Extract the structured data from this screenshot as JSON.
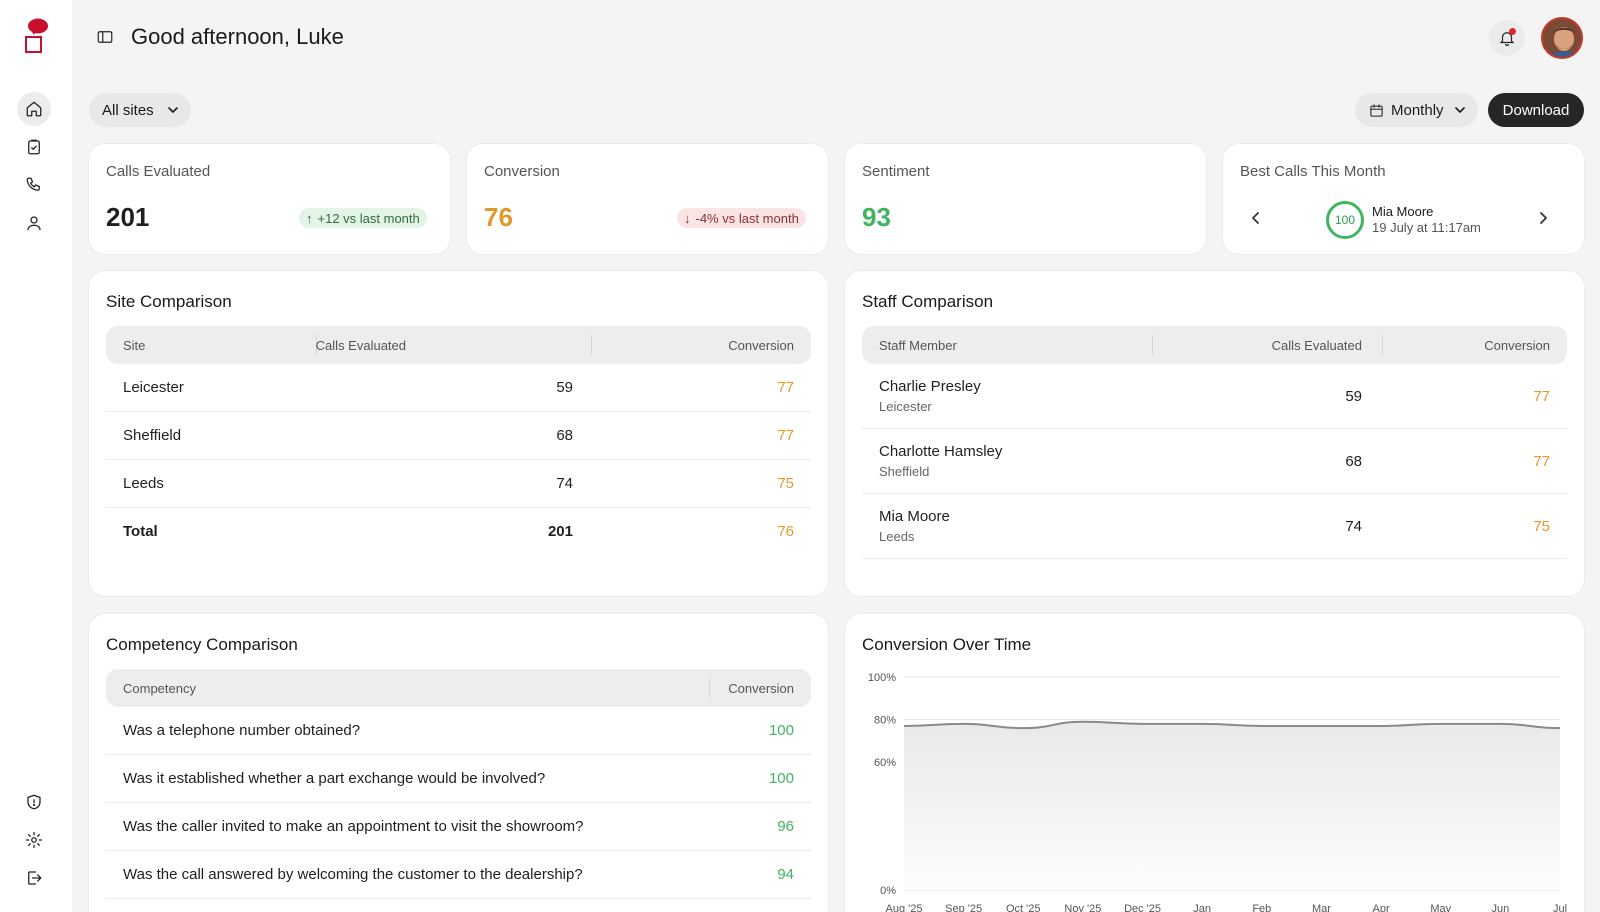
{
  "header": {
    "greeting": "Good afternoon, Luke"
  },
  "sidebar": {
    "nav": [
      {
        "name": "home-icon",
        "active": true
      },
      {
        "name": "clipboard-check-icon",
        "active": false
      },
      {
        "name": "phone-icon",
        "active": false
      },
      {
        "name": "user-icon",
        "active": false
      }
    ],
    "bottom": [
      "shield-icon",
      "gear-icon",
      "logout-icon"
    ]
  },
  "filters": {
    "site": "All sites",
    "period": "Monthly",
    "download_label": "Download"
  },
  "stats": {
    "calls": {
      "label": "Calls Evaluated",
      "value": "201",
      "change": "+12 vs last month"
    },
    "conversion": {
      "label": "Conversion",
      "value": "76",
      "change": "-4% vs last month"
    },
    "sentiment": {
      "label": "Sentiment",
      "value": "93"
    },
    "best": {
      "label": "Best Calls This Month",
      "score": "100",
      "name": "Mia Moore",
      "date": "19 July at 11:17am"
    }
  },
  "site_comparison": {
    "title": "Site Comparison",
    "columns": [
      "Site",
      "Calls Evaluated",
      "Conversion"
    ],
    "rows": [
      {
        "site": "Leicester",
        "calls": "59",
        "conversion": "77"
      },
      {
        "site": "Sheffield",
        "calls": "68",
        "conversion": "77"
      },
      {
        "site": "Leeds",
        "calls": "74",
        "conversion": "75"
      },
      {
        "site": "Total",
        "calls": "201",
        "conversion": "76"
      }
    ]
  },
  "staff_comparison": {
    "title": "Staff Comparison",
    "columns": [
      "Staff Member",
      "Calls Evaluated",
      "Conversion"
    ],
    "rows": [
      {
        "name": "Charlie Presley",
        "site": "Leicester",
        "calls": "59",
        "conversion": "77"
      },
      {
        "name": "Charlotte Hamsley",
        "site": "Sheffield",
        "calls": "68",
        "conversion": "77"
      },
      {
        "name": "Mia Moore",
        "site": "Leeds",
        "calls": "74",
        "conversion": "75"
      }
    ]
  },
  "competency_comparison": {
    "title": "Competency Comparison",
    "columns": [
      "Competency",
      "Conversion"
    ],
    "rows": [
      {
        "question": "Was a telephone number obtained?",
        "conversion": "100"
      },
      {
        "question": "Was it established whether a part exchange would be involved?",
        "conversion": "100"
      },
      {
        "question": "Was the caller invited to make an appointment to visit the showroom?",
        "conversion": "96"
      },
      {
        "question": "Was the call answered by welcoming the customer to the dealership?",
        "conversion": "94"
      }
    ]
  },
  "conversion_chart": {
    "title": "Conversion Over Time"
  },
  "chart_data": {
    "type": "area",
    "title": "Conversion Over Time",
    "x": [
      "Aug '25",
      "Sep '25",
      "Oct '25",
      "Nov '25",
      "Dec '25",
      "Jan",
      "Feb",
      "Mar",
      "Apr",
      "May",
      "Jun",
      "Jul"
    ],
    "series": [
      {
        "values": [
          77,
          78,
          76,
          79,
          78,
          78,
          77,
          77,
          77,
          78,
          78,
          76
        ]
      }
    ],
    "yticks": [
      "0%",
      "60%",
      "80%",
      "100%"
    ],
    "ylim": [
      0,
      100
    ],
    "grid": true,
    "colors": {
      "line": "#8a8a8a",
      "fill": "#e9e9e9"
    }
  }
}
